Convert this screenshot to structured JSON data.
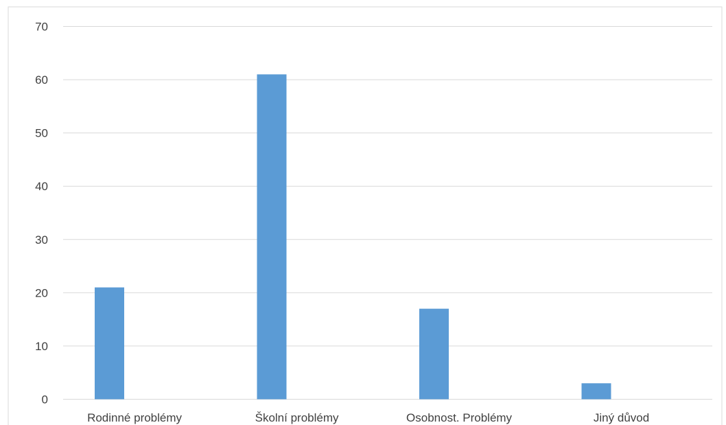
{
  "chart_data": {
    "type": "bar",
    "title": "",
    "xlabel": "",
    "ylabel": "",
    "categories": [
      "Rodinné problémy",
      "Školní problémy",
      "Osobnost. Problémy",
      "Jiný důvod"
    ],
    "values": [
      21,
      61,
      17,
      3
    ],
    "ylim": [
      0,
      70
    ],
    "yticks": [
      0,
      10,
      20,
      30,
      40,
      50,
      60,
      70
    ],
    "grid": true,
    "legend": "none",
    "bar_color": "#5b9bd5",
    "grid_color": "#d9d9d9"
  }
}
